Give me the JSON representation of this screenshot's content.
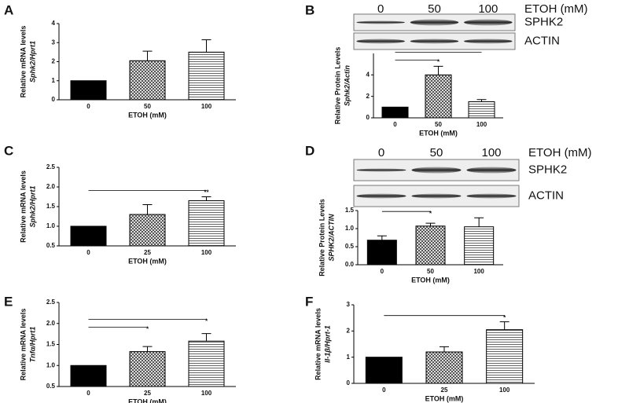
{
  "chart_data": [
    {
      "type": "bar",
      "panel": "A",
      "ylabel": [
        "Relative mRNA levels",
        "Sphk2/Hprt1"
      ],
      "xlabel": "ETOH (mM)",
      "categories": [
        "0",
        "50",
        "100"
      ],
      "values": [
        1.0,
        2.05,
        2.5
      ],
      "errors": [
        null,
        0.5,
        0.65
      ],
      "ylim": [
        0,
        4
      ],
      "yticks": [
        0,
        1,
        2,
        3,
        4
      ],
      "significance": []
    },
    {
      "type": "bar",
      "panel": "B",
      "ylabel": [
        "Relative Protein Levels",
        "Sphk2/Actin"
      ],
      "xlabel": "ETOH (mM)",
      "categories": [
        "0",
        "50",
        "100"
      ],
      "values": [
        1.0,
        4.0,
        1.5
      ],
      "errors": [
        null,
        0.8,
        0.2
      ],
      "ylim": [
        0,
        6
      ],
      "yticks": [
        0,
        2,
        4
      ],
      "significance": [
        {
          "from": 0,
          "to": 1,
          "label": "*"
        },
        {
          "from": 0,
          "to": 2
        }
      ],
      "blot": {
        "lanes": [
          "0",
          "50",
          "100"
        ],
        "condition": "ETOH (mM)",
        "bands": [
          "SPHK2",
          "ACTIN"
        ]
      }
    },
    {
      "type": "bar",
      "panel": "C",
      "ylabel": [
        "Relative mRNA levels",
        "Sphk2/Hprt1"
      ],
      "xlabel": "ETOH (mM)",
      "categories": [
        "0",
        "25",
        "100"
      ],
      "values": [
        1.0,
        1.3,
        1.65
      ],
      "errors": [
        null,
        0.25,
        0.1
      ],
      "ylim": [
        0.5,
        2.5
      ],
      "yticks": [
        {
          "value": 0.5,
          "label": "0.5"
        },
        {
          "value": 1,
          "label": "1.0"
        },
        {
          "value": 1.5,
          "label": "1.5"
        },
        {
          "value": 2,
          "label": "2.0"
        },
        {
          "value": 2.5,
          "label": "2.5"
        }
      ],
      "significance": [
        {
          "from": 0,
          "to": 2,
          "label": "**"
        }
      ]
    },
    {
      "type": "bar",
      "panel": "D",
      "ylabel": [
        "Relative Protein Levels",
        "SPHK2/ACTIN"
      ],
      "xlabel": "ETOH (mM)",
      "categories": [
        "0",
        "50",
        "100"
      ],
      "values": [
        0.68,
        1.07,
        1.05
      ],
      "errors": [
        0.12,
        0.08,
        0.25
      ],
      "ylim": [
        0,
        1.5
      ],
      "yticks": [
        {
          "value": 0,
          "label": "0.0"
        },
        {
          "value": 0.5,
          "label": "0.5"
        },
        {
          "value": 1,
          "label": "1.0"
        },
        {
          "value": 1.5,
          "label": "1.5"
        }
      ],
      "significance": [
        {
          "from": 0,
          "to": 1,
          "label": "*"
        }
      ],
      "blot": {
        "lanes": [
          "0",
          "50",
          "100"
        ],
        "condition": "ETOH (mM)",
        "bands": [
          "SPHK2",
          "ACTIN"
        ]
      }
    },
    {
      "type": "bar",
      "panel": "E",
      "ylabel": [
        "Relative mRNA levels",
        "Tnfα/Hprt1"
      ],
      "xlabel": "ETOH (mM)",
      "categories": [
        "0",
        "25",
        "100"
      ],
      "values": [
        1.0,
        1.33,
        1.58
      ],
      "errors": [
        null,
        0.12,
        0.18
      ],
      "ylim": [
        0.5,
        2.5
      ],
      "yticks": [
        {
          "value": 0.5,
          "label": "0.5"
        },
        {
          "value": 1,
          "label": "1.0"
        },
        {
          "value": 1.5,
          "label": "1.5"
        },
        {
          "value": 2,
          "label": "2.0"
        },
        {
          "value": 2.5,
          "label": "2.5"
        }
      ],
      "significance": [
        {
          "from": 0,
          "to": 1,
          "label": "*"
        },
        {
          "from": 0,
          "to": 2,
          "label": "*"
        }
      ]
    },
    {
      "type": "bar",
      "panel": "F",
      "ylabel": [
        "Relative mRNA levels",
        "Il-1β/Hprt-1"
      ],
      "xlabel": "ETOH (mM)",
      "categories": [
        "0",
        "25",
        "100"
      ],
      "values": [
        1.0,
        1.2,
        2.05
      ],
      "errors": [
        null,
        0.2,
        0.3
      ],
      "ylim": [
        0,
        3
      ],
      "yticks": [
        0,
        1,
        2,
        3
      ],
      "significance": [
        {
          "from": 0,
          "to": 2,
          "label": "*"
        }
      ]
    }
  ]
}
